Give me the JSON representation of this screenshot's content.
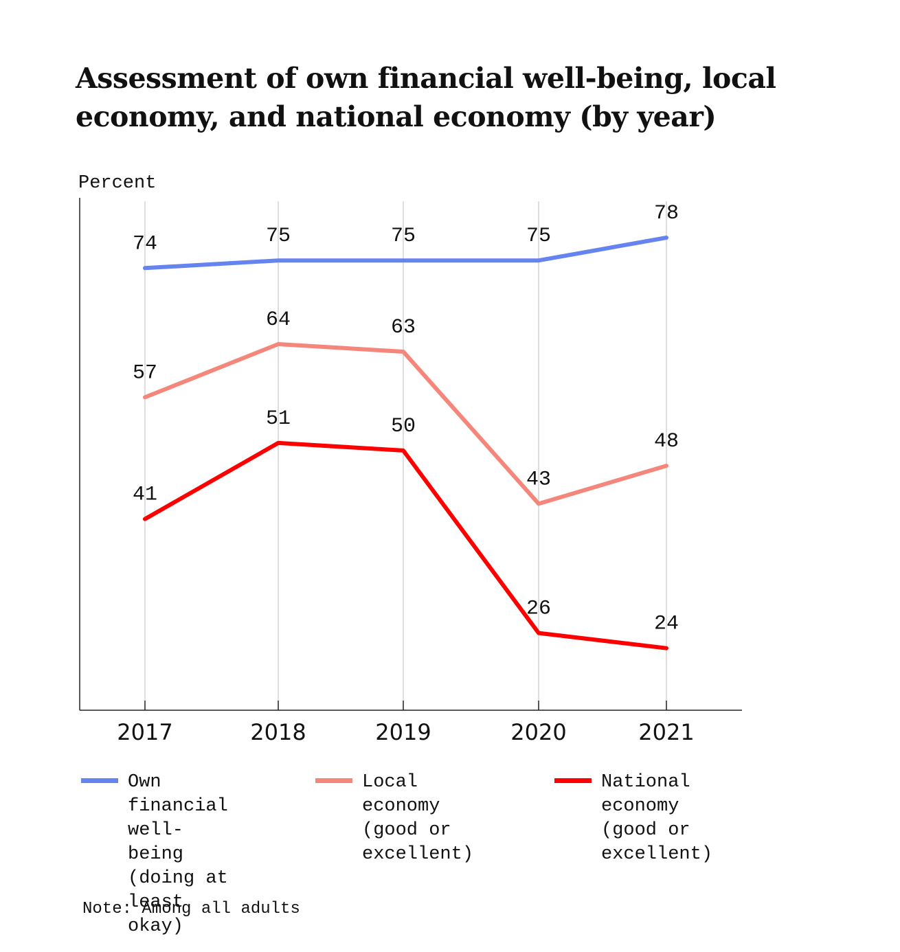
{
  "chart_data": {
    "type": "line",
    "title": "Assessment of own financial well-being, local economy, and national economy (by year)",
    "ylabel": "Percent",
    "xlabel": "",
    "categories": [
      "2017",
      "2018",
      "2019",
      "2020",
      "2021"
    ],
    "series": [
      {
        "name": "Own financial well-being (doing at least okay)",
        "color": "#6684f0",
        "values": [
          74,
          75,
          75,
          75,
          78
        ]
      },
      {
        "name": "Local economy (good or excellent)",
        "color": "#f5867c",
        "values": [
          57,
          64,
          63,
          43,
          48
        ]
      },
      {
        "name": "National economy (good or excellent)",
        "color": "#ff0000",
        "values": [
          41,
          51,
          50,
          26,
          24
        ]
      }
    ],
    "ylim": [
      20,
      78
    ],
    "grid": "vertical",
    "legend_position": "bottom"
  },
  "legend": [
    {
      "text": "Own financial\nwell-being\n(doing at\nleast okay)",
      "color": "#6684f0"
    },
    {
      "text": "Local economy\n(good or\nexcellent)",
      "color": "#f5867c"
    },
    {
      "text": "National\neconomy\n(good or\nexcellent)",
      "color": "#ff0000"
    }
  ],
  "note": "Note: Among all adults"
}
